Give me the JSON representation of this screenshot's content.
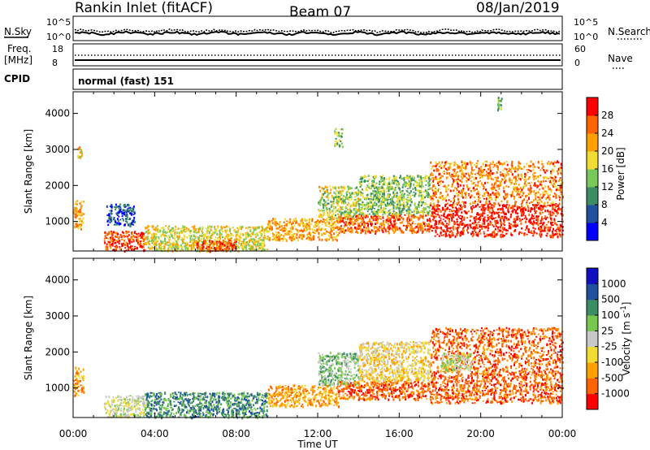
{
  "header": {
    "station": "Rankin Inlet (fitACF)",
    "beam": "Beam 07",
    "date": "08/Jan/2019"
  },
  "top_panels": {
    "nsky_label": "N.Sky",
    "nsearch_label": "N.Search",
    "nave_label": "Nave",
    "freq_label_line1": "Freq.",
    "freq_label_line2": "[MHz]",
    "cpid_label": "CPID",
    "cpid_value": "normal (fast) 151",
    "noise_ticks": [
      "10^5",
      "10^0"
    ],
    "freq_ticks": [
      "18",
      "8"
    ],
    "nave_ticks": [
      "60",
      "0"
    ]
  },
  "colors": {
    "power_scale": [
      "#0000ff",
      "#2050a0",
      "#3c8c64",
      "#78c85a",
      "#f0dc32",
      "#ffa000",
      "#ff6400",
      "#ff0000"
    ],
    "velocity_scale": [
      "#ff0000",
      "#ff6400",
      "#ffa000",
      "#f0dc32",
      "#c8c8c8",
      "#78c850",
      "#3c8c64",
      "#2050a0",
      "#1010c0"
    ]
  },
  "chart_data": [
    {
      "type": "heatmap",
      "title": "",
      "xlabel": "Time UT",
      "ylabel": "Slant Range [km]",
      "x_ticks": [
        "00:00",
        "04:00",
        "08:00",
        "12:00",
        "16:00",
        "20:00",
        "00:00"
      ],
      "y_ticks": [
        1000,
        2000,
        3000,
        4000
      ],
      "xlim_hours": [
        0,
        24
      ],
      "ylim_km": [
        180,
        4600
      ],
      "colorbar": {
        "label": "Power [dB]",
        "ticks": [
          4,
          8,
          12,
          16,
          20,
          24,
          28
        ],
        "range": [
          0,
          32
        ]
      },
      "scatter_regions": [
        {
          "t0": 0.0,
          "t1": 0.5,
          "r0": 800,
          "r1": 1600,
          "value": 22
        },
        {
          "t0": 0.2,
          "t1": 0.4,
          "r0": 2800,
          "r1": 3100,
          "value": 20
        },
        {
          "t0": 1.5,
          "t1": 3.5,
          "r0": 200,
          "r1": 750,
          "value": 28
        },
        {
          "t0": 1.6,
          "t1": 3.0,
          "r0": 900,
          "r1": 1500,
          "value": 6
        },
        {
          "t0": 3.5,
          "t1": 9.5,
          "r0": 200,
          "r1": 900,
          "value": 18
        },
        {
          "t0": 6.0,
          "t1": 8.0,
          "r0": 200,
          "r1": 500,
          "value": 28
        },
        {
          "t0": 9.5,
          "t1": 13.0,
          "r0": 500,
          "r1": 1100,
          "value": 22
        },
        {
          "t0": 12.0,
          "t1": 14.0,
          "r0": 1100,
          "r1": 2000,
          "value": 16
        },
        {
          "t0": 12.8,
          "t1": 13.2,
          "r0": 3100,
          "r1": 3600,
          "value": 14
        },
        {
          "t0": 13.0,
          "t1": 17.5,
          "r0": 700,
          "r1": 1200,
          "value": 26
        },
        {
          "t0": 14.0,
          "t1": 17.5,
          "r0": 1200,
          "r1": 2300,
          "value": 14
        },
        {
          "t0": 17.5,
          "t1": 24.0,
          "r0": 600,
          "r1": 1500,
          "value": 30
        },
        {
          "t0": 17.5,
          "t1": 24.0,
          "r0": 1500,
          "r1": 2700,
          "value": 24
        },
        {
          "t0": 20.8,
          "t1": 21.0,
          "r0": 4100,
          "r1": 4500,
          "value": 14
        }
      ]
    },
    {
      "type": "heatmap",
      "title": "",
      "xlabel": "Time UT",
      "ylabel": "Slant Range [km]",
      "x_ticks": [
        "00:00",
        "04:00",
        "08:00",
        "12:00",
        "16:00",
        "20:00",
        "00:00"
      ],
      "y_ticks": [
        1000,
        2000,
        3000,
        4000
      ],
      "xlim_hours": [
        0,
        24
      ],
      "ylim_km": [
        180,
        4600
      ],
      "colorbar": {
        "label": "Velocity [m s^-1]",
        "ticks": [
          "1000",
          "500",
          "100",
          "25",
          "-25",
          "-100",
          "-500",
          "-1000"
        ]
      },
      "scatter_regions": [
        {
          "t0": 0.0,
          "t1": 0.5,
          "r0": 800,
          "r1": 1600,
          "category": 2
        },
        {
          "t0": 1.5,
          "t1": 3.5,
          "r0": 200,
          "r1": 800,
          "category": 4
        },
        {
          "t0": 3.5,
          "t1": 9.5,
          "r0": 200,
          "r1": 900,
          "category": 6
        },
        {
          "t0": 9.5,
          "t1": 13.0,
          "r0": 500,
          "r1": 1100,
          "category": 2
        },
        {
          "t0": 12.0,
          "t1": 14.0,
          "r0": 1100,
          "r1": 2000,
          "category": 5
        },
        {
          "t0": 13.0,
          "t1": 17.5,
          "r0": 700,
          "r1": 1200,
          "category": 1
        },
        {
          "t0": 14.0,
          "t1": 17.5,
          "r0": 1200,
          "r1": 2300,
          "category": 3
        },
        {
          "t0": 17.5,
          "t1": 24.0,
          "r0": 600,
          "r1": 1500,
          "category": 1
        },
        {
          "t0": 17.5,
          "t1": 24.0,
          "r0": 1500,
          "r1": 2700,
          "category": 1
        },
        {
          "t0": 18.0,
          "t1": 19.5,
          "r0": 1500,
          "r1": 2000,
          "category": 4
        }
      ]
    }
  ]
}
